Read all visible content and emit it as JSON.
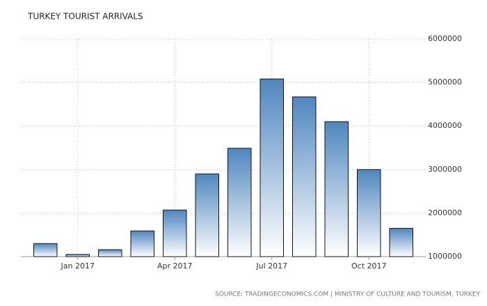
{
  "chart_data": {
    "type": "bar",
    "title": "TURKEY TOURIST ARRIVALS",
    "categories": [
      null,
      "Jan 2017",
      null,
      null,
      "Apr 2017",
      null,
      null,
      "Jul 2017",
      null,
      null,
      "Oct 2017",
      null
    ],
    "values": [
      1300000,
      1050000,
      1160000,
      1590000,
      2070000,
      2900000,
      3490000,
      5080000,
      4670000,
      4100000,
      3000000,
      1650000
    ],
    "color": "#4f86bf",
    "ylim": [
      1000000,
      6000000
    ],
    "yticks": [
      1000000,
      2000000,
      3000000,
      4000000,
      5000000,
      6000000
    ],
    "grid": true,
    "source": "SOURCE: TRADINGECONOMICS.COM | MINISTRY OF CULTURE AND TOURISM, TURKEY"
  }
}
